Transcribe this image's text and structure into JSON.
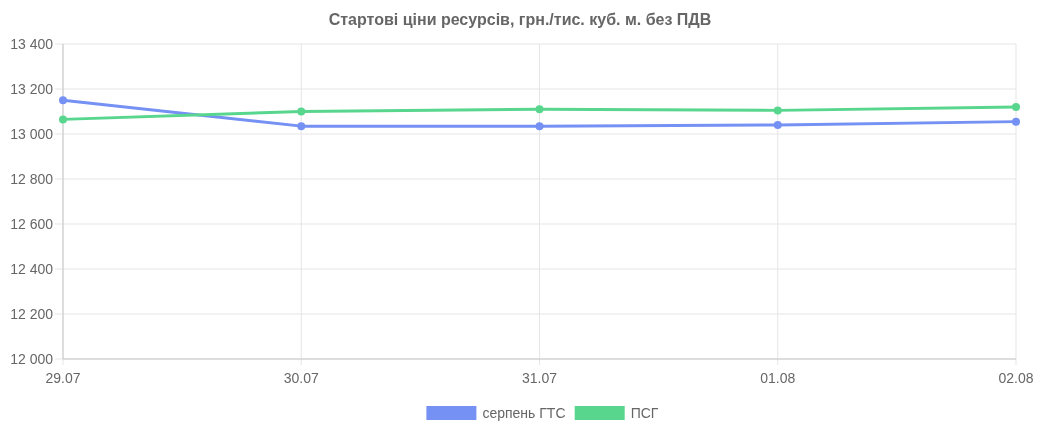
{
  "chart_data": {
    "type": "line",
    "title": "Стартові ціни ресурсів, грн./тис. куб. м. без ПДВ",
    "categories": [
      "29.07",
      "30.07",
      "31.07",
      "01.08",
      "02.08"
    ],
    "series": [
      {
        "name": "серпень ГТС",
        "color": "#7591f3",
        "values": [
          13150,
          13035,
          13035,
          13040,
          13055
        ]
      },
      {
        "name": "ПСГ",
        "color": "#58d68d",
        "values": [
          13065,
          13100,
          13110,
          13105,
          13120
        ]
      }
    ],
    "ylim": [
      12000,
      13400
    ],
    "yticks": [
      {
        "value": 12000,
        "label": "12 000"
      },
      {
        "value": 12200,
        "label": "12 200"
      },
      {
        "value": 12400,
        "label": "12 400"
      },
      {
        "value": 12600,
        "label": "12 600"
      },
      {
        "value": 12800,
        "label": "12 800"
      },
      {
        "value": 13000,
        "label": "13 000"
      },
      {
        "value": 13200,
        "label": "13 200"
      },
      {
        "value": 13400,
        "label": "13 400"
      }
    ],
    "grid": true,
    "legend": "bottom",
    "marker": "circle",
    "line_style": "solid"
  }
}
